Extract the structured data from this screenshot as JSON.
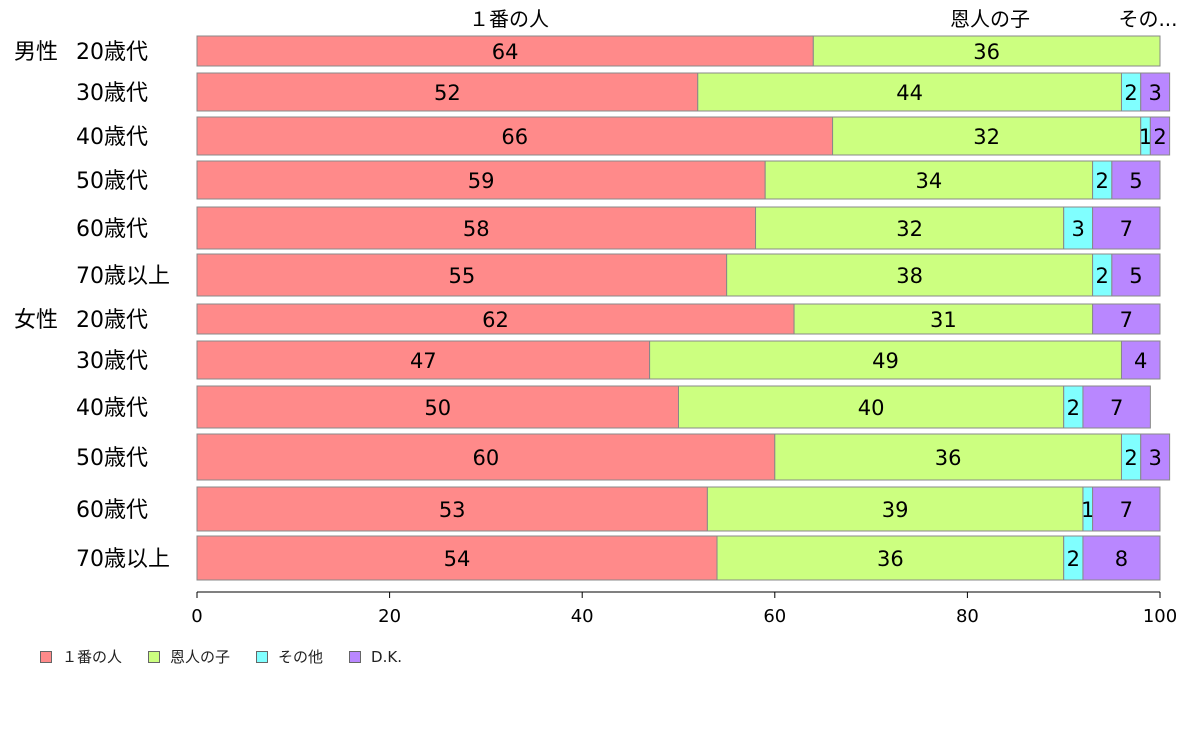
{
  "chart_data": {
    "type": "bar",
    "orientation": "horizontal",
    "stacked": true,
    "top_labels": [
      "１番の人",
      "恩人の子",
      "その..."
    ],
    "groups": [
      {
        "label": "男性",
        "rows": [
          {
            "label": "20歳代",
            "values": [
              64,
              36,
              0,
              0
            ]
          },
          {
            "label": "30歳代",
            "values": [
              52,
              44,
              2,
              3
            ]
          },
          {
            "label": "40歳代",
            "values": [
              66,
              32,
              1,
              2
            ]
          },
          {
            "label": "50歳代",
            "values": [
              59,
              34,
              2,
              5
            ]
          },
          {
            "label": "60歳代",
            "values": [
              58,
              32,
              3,
              7
            ]
          },
          {
            "label": "70歳以上",
            "values": [
              55,
              38,
              2,
              5
            ]
          }
        ]
      },
      {
        "label": "女性",
        "rows": [
          {
            "label": "20歳代",
            "values": [
              62,
              31,
              0,
              7
            ]
          },
          {
            "label": "30歳代",
            "values": [
              47,
              49,
              0,
              4
            ]
          },
          {
            "label": "40歳代",
            "values": [
              50,
              40,
              2,
              7
            ]
          },
          {
            "label": "50歳代",
            "values": [
              60,
              36,
              2,
              3
            ]
          },
          {
            "label": "60歳代",
            "values": [
              53,
              39,
              1,
              7
            ]
          },
          {
            "label": "70歳以上",
            "values": [
              54,
              36,
              2,
              8
            ]
          }
        ]
      }
    ],
    "series": [
      {
        "name": "１番の人",
        "color": "#ff8a8a"
      },
      {
        "name": "恩人の子",
        "color": "#ccff80"
      },
      {
        "name": "その他",
        "color": "#80ffff"
      },
      {
        "name": "D.K.",
        "color": "#b987ff"
      }
    ],
    "xlim": [
      0,
      100
    ],
    "xticks": [
      0,
      20,
      40,
      60,
      80,
      100
    ],
    "grid": false,
    "legend_position": "bottom-left"
  }
}
